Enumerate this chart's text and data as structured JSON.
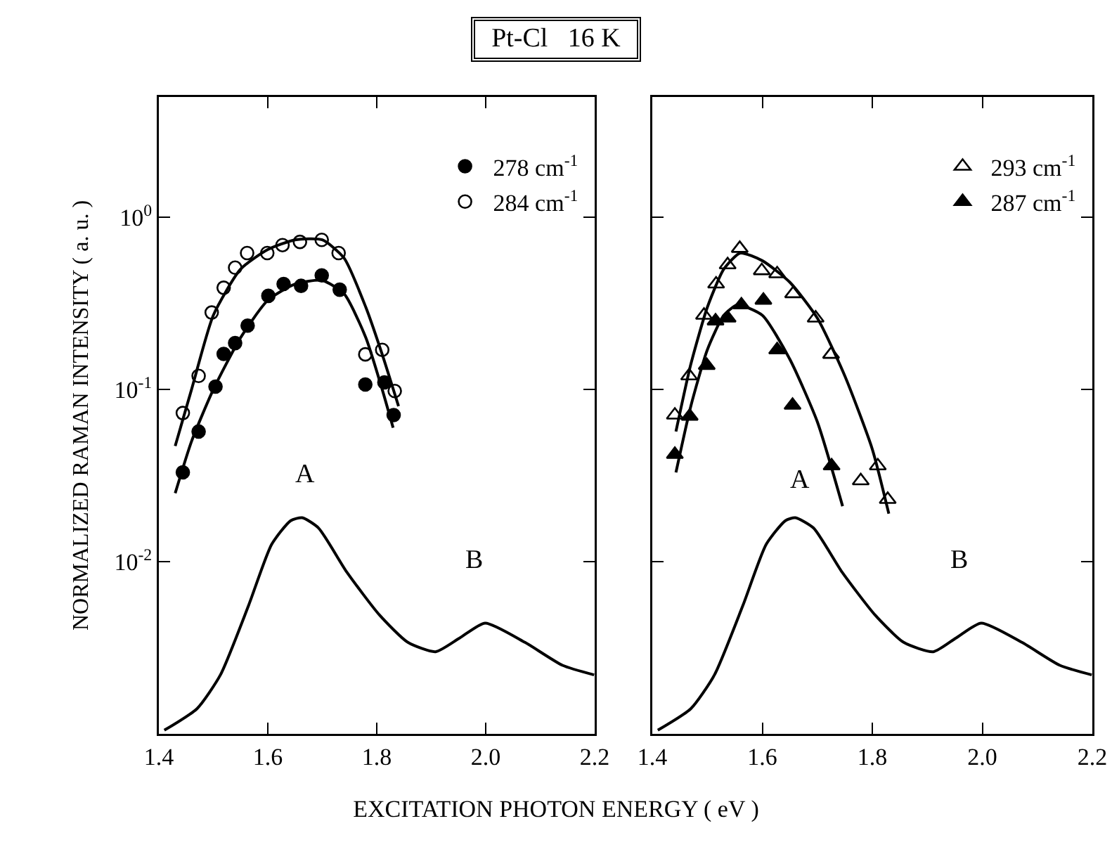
{
  "chart_data": [
    {
      "type": "scatter",
      "title": "Pt-Cl   16 K",
      "xlabel": "EXCITATION PHOTON ENERGY ( eV )",
      "ylabel": "NORMALIZED RAMAN INTENSITY ( a. u. )",
      "log": "y",
      "grid": false,
      "legend": "top right",
      "marker": "circle",
      "xlim": [
        1.4,
        2.2
      ],
      "xticks": [
        1.4,
        1.6,
        1.8,
        {
          "value": 2.0,
          "label": "2.0"
        },
        2.2
      ],
      "ylim": [
        0.001,
        5
      ],
      "yticks": [
        {
          "value": 0.01,
          "label": "10$^{-2}$"
        },
        {
          "value": 0.1,
          "label": "10$^{-1}$"
        },
        {
          "value": 1,
          "label": "10$^{0}$"
        }
      ],
      "annotations": [
        "A",
        "B"
      ],
      "series": [
        {
          "name": "278 cm$^{-1}$",
          "color": "#000000",
          "x": [
            1.444,
            1.473,
            1.504,
            1.519,
            1.54,
            1.563,
            1.601,
            1.629,
            1.661,
            1.699,
            1.732,
            1.779,
            1.814,
            1.831
          ],
          "values": [
            0.033,
            0.057,
            0.104,
            0.161,
            0.186,
            0.235,
            0.35,
            0.41,
            0.4,
            0.46,
            0.38,
            0.107,
            0.11,
            0.071
          ]
        },
        {
          "name": "284 cm$^{-1}$",
          "color": "#ffffff",
          "x": [
            1.444,
            1.473,
            1.497,
            1.519,
            1.54,
            1.562,
            1.599,
            1.627,
            1.659,
            1.699,
            1.73,
            1.779,
            1.81,
            1.833
          ],
          "values": [
            0.073,
            0.12,
            0.28,
            0.39,
            0.51,
            0.62,
            0.62,
            0.69,
            0.72,
            0.74,
            0.62,
            0.16,
            0.17,
            0.098
          ]
        },
        {
          "type": "line",
          "marker": "none",
          "color": "#000000",
          "x": [
            1.43,
            1.46,
            1.5,
            1.55,
            1.6,
            1.65,
            1.7,
            1.74,
            1.78,
            1.81,
            1.84
          ],
          "values": [
            0.047,
            0.1,
            0.27,
            0.5,
            0.65,
            0.74,
            0.74,
            0.58,
            0.3,
            0.16,
            0.08
          ]
        },
        {
          "type": "line",
          "marker": "none",
          "color": "#000000",
          "x": [
            1.43,
            1.46,
            1.5,
            1.55,
            1.6,
            1.65,
            1.7,
            1.74,
            1.78,
            1.81,
            1.83
          ],
          "values": [
            0.025,
            0.05,
            0.1,
            0.2,
            0.33,
            0.41,
            0.43,
            0.36,
            0.2,
            0.1,
            0.06
          ]
        },
        {
          "type": "line",
          "marker": "none",
          "color": "#000000",
          "x": [
            1.41,
            1.47,
            1.513,
            1.565,
            1.607,
            1.642,
            1.663,
            1.693,
            1.745,
            1.805,
            1.857,
            1.908,
            1.952,
            1.999,
            2.072,
            2.141,
            2.199
          ],
          "values": [
            0.00105,
            0.0014,
            0.0022,
            0.0056,
            0.0126,
            0.0173,
            0.018,
            0.0157,
            0.0087,
            0.0049,
            0.0034,
            0.003,
            0.0036,
            0.0044,
            0.0034,
            0.0025,
            0.0022
          ]
        }
      ]
    },
    {
      "type": "scatter",
      "log": "y",
      "grid": false,
      "legend": "top right",
      "marker": "triangle",
      "tick_labels": "x",
      "xlim": [
        1.4,
        2.2
      ],
      "xticks": [
        1.4,
        1.6,
        1.8,
        {
          "value": 2.0,
          "label": "2.0"
        },
        2.2
      ],
      "ylim": [
        0.001,
        5
      ],
      "yticks": [
        {
          "value": 0.01,
          "label": null
        },
        {
          "value": 0.1,
          "label": null
        },
        {
          "value": 1,
          "label": null
        }
      ],
      "annotations": [
        "A",
        "B"
      ],
      "series": [
        {
          "name": "293 cm$^{-1}$",
          "color": "#ffffff",
          "x": [
            1.441,
            1.467,
            1.494,
            1.516,
            1.537,
            1.559,
            1.599,
            1.627,
            1.656,
            1.697,
            1.725,
            1.779,
            1.81,
            1.828
          ],
          "values": [
            0.071,
            0.12,
            0.27,
            0.41,
            0.53,
            0.66,
            0.49,
            0.47,
            0.36,
            0.26,
            0.16,
            0.0295,
            0.036,
            0.023
          ]
        },
        {
          "name": "287 cm$^{-1}$",
          "color": "#000000",
          "x": [
            1.441,
            1.468,
            1.499,
            1.515,
            1.537,
            1.562,
            1.602,
            1.627,
            1.655,
            1.726
          ],
          "values": [
            0.042,
            0.07,
            0.138,
            0.25,
            0.26,
            0.31,
            0.33,
            0.17,
            0.081,
            0.036
          ]
        },
        {
          "type": "line",
          "marker": "none",
          "color": "#000000",
          "x": [
            1.443,
            1.47,
            1.5,
            1.53,
            1.56,
            1.6,
            1.65,
            1.7,
            1.75,
            1.8,
            1.83
          ],
          "values": [
            0.057,
            0.14,
            0.3,
            0.5,
            0.62,
            0.56,
            0.42,
            0.26,
            0.12,
            0.045,
            0.019
          ]
        },
        {
          "type": "line",
          "marker": "none",
          "color": "#000000",
          "x": [
            1.443,
            1.47,
            1.5,
            1.53,
            1.555,
            1.6,
            1.65,
            1.7,
            1.746
          ],
          "values": [
            0.033,
            0.08,
            0.17,
            0.27,
            0.31,
            0.27,
            0.15,
            0.065,
            0.021
          ]
        },
        {
          "type": "line",
          "marker": "none",
          "color": "#000000",
          "x": [
            1.41,
            1.47,
            1.513,
            1.565,
            1.607,
            1.642,
            1.66,
            1.693,
            1.745,
            1.805,
            1.857,
            1.911,
            1.952,
            1.998,
            2.072,
            2.141,
            2.199
          ],
          "values": [
            0.00105,
            0.0014,
            0.0022,
            0.0056,
            0.0126,
            0.0173,
            0.018,
            0.0157,
            0.0087,
            0.0049,
            0.0034,
            0.003,
            0.0036,
            0.0044,
            0.0034,
            0.0025,
            0.0022
          ]
        }
      ]
    }
  ]
}
